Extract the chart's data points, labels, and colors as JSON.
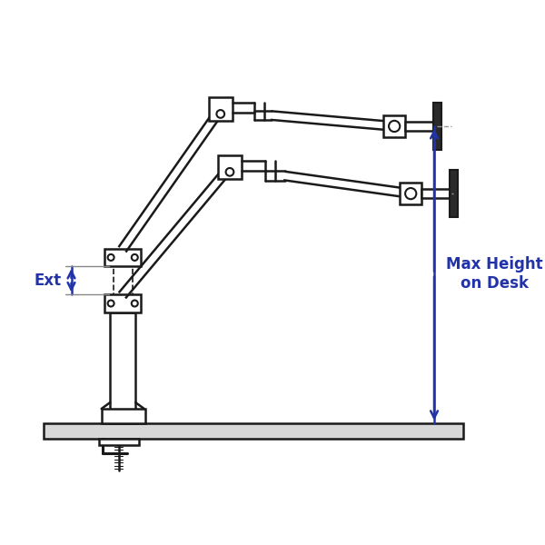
{
  "bg_color": "#ffffff",
  "line_color": "#1a1a1a",
  "blue_color": "#2233aa",
  "gray_dash_color": "#999999",
  "fig_size": [
    6.0,
    6.0
  ],
  "dpi": 100,
  "ext_label": "Ext",
  "max_height_label": "Max Height\non Desk",
  "label_fontsize": 12
}
